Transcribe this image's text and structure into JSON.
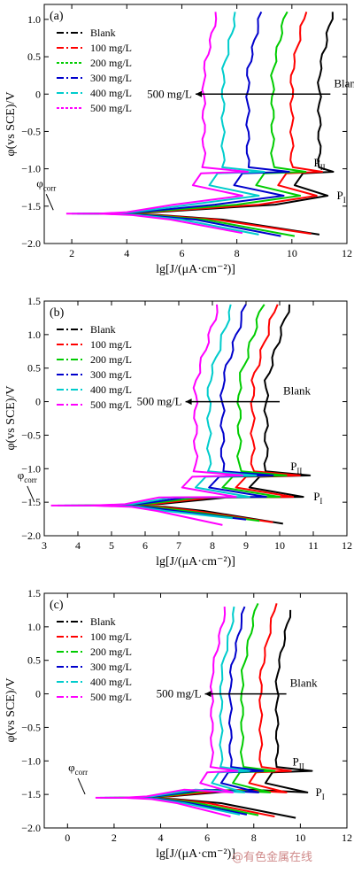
{
  "chart_data": [
    {
      "type": "line",
      "panel_label": "(a)",
      "xlabel": "lg[J/(μA·cm⁻²)]",
      "ylabel": "φ(vs SCE)/V",
      "xlim": [
        1,
        12
      ],
      "ylim": [
        -2.0,
        1.2
      ],
      "x_ticks": [
        2,
        4,
        6,
        8,
        10,
        12
      ],
      "y_ticks": [
        -2.0,
        -1.5,
        -1.0,
        -0.5,
        0,
        0.5,
        1.0
      ],
      "grid": false,
      "legend_position": "top-left",
      "annotations": {
        "corr": "φcorr",
        "p2": "PII",
        "p1": "PI",
        "blank": "Blank",
        "conc": "500 mg/L"
      },
      "series": [
        {
          "name": "Blank",
          "color": "#000000",
          "dash": "8,3,2,3",
          "corr": -1.6,
          "icorr": 4.0,
          "passive": 11.0,
          "peak": 11.5,
          "drop": 10.4,
          "pii": -1.04,
          "top": 1.1,
          "cathode": 11.0,
          "cat_end": -1.88
        },
        {
          "name": "100 mg/L",
          "color": "#ff0000",
          "dash": "8,3,2,3",
          "corr": -1.6,
          "icorr": 3.8,
          "passive": 10.0,
          "peak": 11.1,
          "drop": 9.8,
          "pii": -1.04,
          "top": 1.1,
          "cathode": 10.7,
          "cat_end": -1.87
        },
        {
          "name": "200 mg/L",
          "color": "#00cc00",
          "dash": "3,2",
          "corr": -1.6,
          "icorr": 3.6,
          "passive": 9.3,
          "peak": 10.5,
          "drop": 9.0,
          "pii": -1.04,
          "top": 1.1,
          "cathode": 10.1,
          "cat_end": -1.9
        },
        {
          "name": "300 mg/L",
          "color": "#0000cc",
          "dash": "8,3,2,3",
          "corr": -1.6,
          "icorr": 3.4,
          "passive": 8.4,
          "peak": 9.9,
          "drop": 8.2,
          "pii": -1.04,
          "top": 1.1,
          "cathode": 9.6,
          "cat_end": -1.9
        },
        {
          "name": "400 mg/L",
          "color": "#00cccc",
          "dash": "8,3,2,3",
          "corr": -1.6,
          "icorr": 3.2,
          "passive": 7.5,
          "peak": 9.0,
          "drop": 7.3,
          "pii": -1.04,
          "top": 1.1,
          "cathode": 8.8,
          "cat_end": -1.88
        },
        {
          "name": "500 mg/L",
          "color": "#ff00ff",
          "dash": "3,2",
          "corr": -1.6,
          "icorr": 3.0,
          "passive": 6.8,
          "peak": 8.4,
          "drop": 6.7,
          "pii": -1.04,
          "top": 1.1,
          "cathode": 8.2,
          "cat_end": -1.86
        }
      ]
    },
    {
      "type": "line",
      "panel_label": "(b)",
      "xlabel": "lg[J/(μA·cm⁻²)]",
      "ylabel": "φ(vs SCE)/V",
      "xlim": [
        3,
        12
      ],
      "ylim": [
        -2.0,
        1.5
      ],
      "x_ticks": [
        3,
        4,
        5,
        6,
        7,
        8,
        9,
        10,
        11,
        12
      ],
      "y_ticks": [
        -2.0,
        -1.5,
        -1.0,
        -0.5,
        0,
        0.5,
        1.0,
        1.5
      ],
      "grid": false,
      "legend_position": "top-left",
      "annotations": {
        "corr": "φcorr",
        "p2": "PII",
        "p1": "PI",
        "blank": "Blank",
        "conc": "500 mg/L"
      },
      "series": [
        {
          "name": "Blank",
          "color": "#000000",
          "dash": "8,3,2,3",
          "corr": -1.55,
          "icorr": 5.4,
          "passive": 9.6,
          "peak": 10.9,
          "drop": 9.4,
          "pii": -1.1,
          "top": 1.45,
          "cathode": 10.1,
          "cat_end": -1.82
        },
        {
          "name": "100 mg/L",
          "color": "#ff0000",
          "dash": "8,3,2,3",
          "corr": -1.55,
          "icorr": 5.2,
          "passive": 9.2,
          "peak": 10.6,
          "drop": 9.0,
          "pii": -1.1,
          "top": 1.45,
          "cathode": 9.8,
          "cat_end": -1.8
        },
        {
          "name": "200 mg/L",
          "color": "#00cc00",
          "dash": "8,3,2,3",
          "corr": -1.55,
          "icorr": 5.0,
          "passive": 8.8,
          "peak": 10.2,
          "drop": 8.6,
          "pii": -1.1,
          "top": 1.45,
          "cathode": 9.4,
          "cat_end": -1.78
        },
        {
          "name": "300 mg/L",
          "color": "#0000cc",
          "dash": "8,3,2,3",
          "corr": -1.55,
          "icorr": 4.8,
          "passive": 8.3,
          "peak": 9.8,
          "drop": 8.2,
          "pii": -1.1,
          "top": 1.45,
          "cathode": 9.0,
          "cat_end": -1.76
        },
        {
          "name": "400 mg/L",
          "color": "#00cccc",
          "dash": "8,3,2,3",
          "corr": -1.55,
          "icorr": 4.6,
          "passive": 7.9,
          "peak": 9.3,
          "drop": 7.8,
          "pii": -1.1,
          "top": 1.45,
          "cathode": 8.6,
          "cat_end": -1.74
        },
        {
          "name": "500 mg/L",
          "color": "#ff00ff",
          "dash": "8,3,2,3",
          "corr": -1.55,
          "icorr": 4.4,
          "passive": 7.5,
          "peak": 8.9,
          "drop": 7.4,
          "pii": -1.1,
          "top": 1.45,
          "cathode": 8.3,
          "cat_end": -1.84
        }
      ]
    },
    {
      "type": "line",
      "panel_label": "(c)",
      "xlabel": "lg[J/(μA·cm⁻²)]",
      "ylabel": "φ(vs SCE)/V",
      "xlim": [
        -1,
        12
      ],
      "ylim": [
        -2.0,
        1.5
      ],
      "x_ticks": [
        0,
        2,
        4,
        6,
        8,
        10,
        12
      ],
      "y_ticks": [
        -2.0,
        -1.5,
        -1.0,
        -0.5,
        0,
        0.5,
        1.0,
        1.5
      ],
      "grid": false,
      "legend_position": "top-left",
      "annotations": {
        "corr": "φcorr",
        "p2": "PII",
        "p1": "PI",
        "blank": "Blank",
        "conc": "500 mg/L"
      },
      "series": [
        {
          "name": "Blank",
          "color": "#000000",
          "dash": "8,3,2,3",
          "corr": -1.55,
          "icorr": 3.4,
          "passive": 9.0,
          "peak": 10.5,
          "drop": 8.8,
          "pii": -1.15,
          "top": 1.25,
          "cathode": 9.8,
          "cat_end": -1.85
        },
        {
          "name": "100 mg/L",
          "color": "#ff0000",
          "dash": "8,3,2,3",
          "corr": -1.55,
          "icorr": 3.2,
          "passive": 8.3,
          "peak": 9.6,
          "drop": 8.1,
          "pii": -1.15,
          "top": 1.35,
          "cathode": 8.9,
          "cat_end": -1.83
        },
        {
          "name": "200 mg/L",
          "color": "#00cc00",
          "dash": "8,3,2,3",
          "corr": -1.55,
          "icorr": 3.0,
          "passive": 7.5,
          "peak": 8.9,
          "drop": 7.4,
          "pii": -1.15,
          "top": 1.35,
          "cathode": 8.2,
          "cat_end": -1.81
        },
        {
          "name": "300 mg/L",
          "color": "#0000cc",
          "dash": "8,3,2,3",
          "corr": -1.55,
          "icorr": 2.8,
          "passive": 7.0,
          "peak": 8.4,
          "drop": 6.9,
          "pii": -1.15,
          "top": 1.3,
          "cathode": 7.7,
          "cat_end": -1.8
        },
        {
          "name": "400 mg/L",
          "color": "#00cccc",
          "dash": "8,3,2,3",
          "corr": -1.55,
          "icorr": 2.6,
          "passive": 6.6,
          "peak": 7.8,
          "drop": 6.5,
          "pii": -1.15,
          "top": 1.3,
          "cathode": 7.4,
          "cat_end": -1.8
        },
        {
          "name": "500 mg/L",
          "color": "#ff00ff",
          "dash": "8,3,2,3",
          "corr": -1.55,
          "icorr": 2.4,
          "passive": 6.2,
          "peak": 7.3,
          "drop": 6.0,
          "pii": -1.15,
          "top": 1.3,
          "cathode": 7.0,
          "cat_end": -1.83
        }
      ]
    }
  ],
  "watermark": "@有色金属在线"
}
